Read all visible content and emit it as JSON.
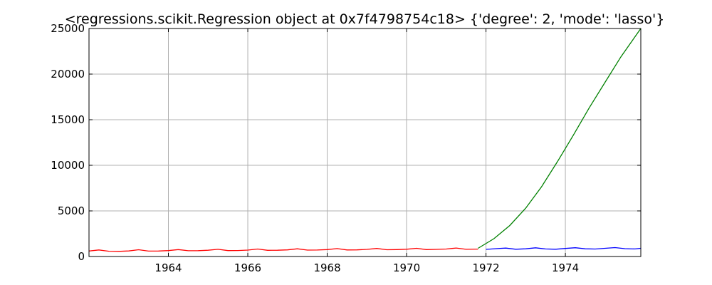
{
  "chart_data": {
    "type": "line",
    "title": "<regressions.scikit.Regression object at 0x7f4798754c18> {'degree': 2, 'mode': 'lasso'}",
    "xlabel": "",
    "ylabel": "",
    "xlim": [
      1962.0,
      1975.9
    ],
    "ylim": [
      0,
      25000
    ],
    "grid": true,
    "x_ticks": [
      1964,
      1966,
      1968,
      1970,
      1972,
      1974
    ],
    "y_ticks": [
      0,
      5000,
      10000,
      15000,
      20000,
      25000
    ],
    "series": [
      {
        "color": "#ff0000",
        "x": [
          1962.0,
          1962.25,
          1962.5,
          1962.75,
          1963.0,
          1963.25,
          1963.5,
          1963.75,
          1964.0,
          1964.25,
          1964.5,
          1964.75,
          1965.0,
          1965.25,
          1965.5,
          1965.75,
          1966.0,
          1966.25,
          1966.5,
          1966.75,
          1967.0,
          1967.25,
          1967.5,
          1967.75,
          1968.0,
          1968.25,
          1968.5,
          1968.75,
          1969.0,
          1969.25,
          1969.5,
          1969.75,
          1970.0,
          1970.25,
          1970.5,
          1970.75,
          1971.0,
          1971.25,
          1971.5,
          1971.8
        ],
        "y": [
          600,
          720,
          580,
          560,
          610,
          740,
          590,
          600,
          650,
          760,
          630,
          640,
          690,
          790,
          650,
          660,
          700,
          820,
          680,
          690,
          730,
          840,
          700,
          710,
          760,
          870,
          720,
          730,
          780,
          880,
          740,
          760,
          800,
          900,
          760,
          780,
          820,
          930,
          790,
          810
        ]
      },
      {
        "color": "#0000ff",
        "x": [
          1972.0,
          1972.25,
          1972.5,
          1972.75,
          1973.0,
          1973.25,
          1973.5,
          1973.75,
          1974.0,
          1974.25,
          1974.5,
          1974.75,
          1975.0,
          1975.25,
          1975.5,
          1975.75,
          1975.9
        ],
        "y": [
          780,
          860,
          920,
          800,
          840,
          950,
          830,
          800,
          880,
          960,
          840,
          820,
          900,
          980,
          860,
          830,
          900
        ]
      },
      {
        "color": "#008000",
        "x": [
          1971.8,
          1972.2,
          1972.6,
          1973.0,
          1973.4,
          1973.8,
          1974.2,
          1974.6,
          1975.0,
          1975.4,
          1975.9
        ],
        "y": [
          900,
          1950,
          3400,
          5300,
          7650,
          10400,
          13300,
          16300,
          19100,
          21900,
          25000
        ]
      }
    ]
  }
}
